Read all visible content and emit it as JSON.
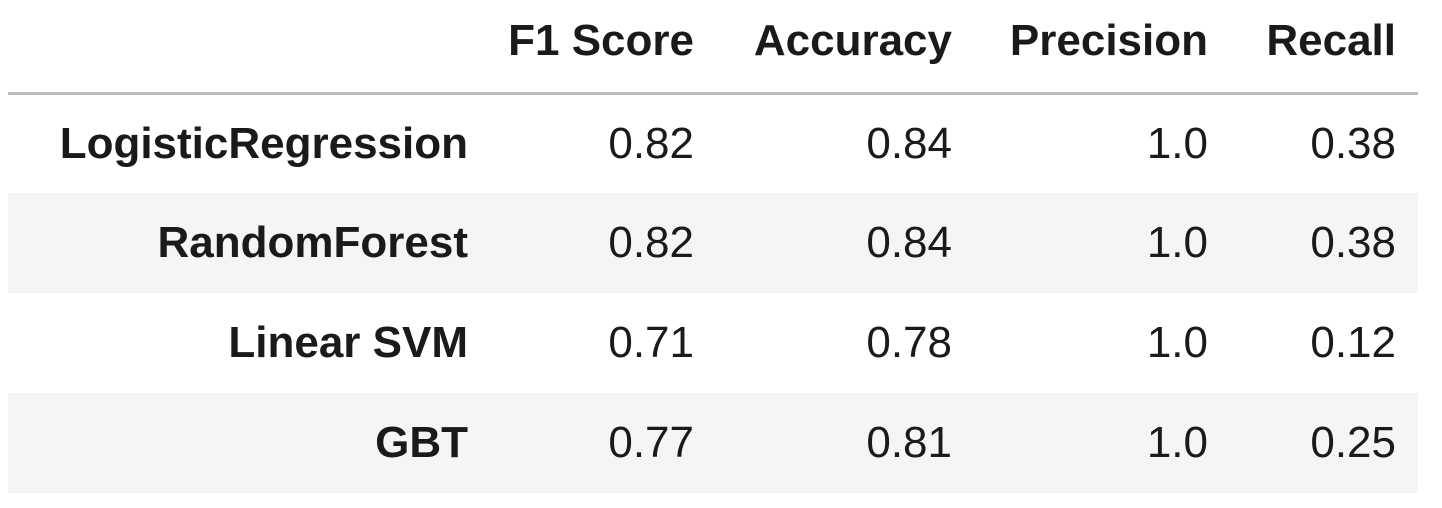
{
  "table": {
    "columns": [
      "",
      "F1 Score",
      "Accuracy",
      "Precision",
      "Recall"
    ],
    "rows": [
      {
        "label": "LogisticRegression",
        "values": [
          "0.82",
          "0.84",
          "1.0",
          "0.38"
        ]
      },
      {
        "label": "RandomForest",
        "values": [
          "0.82",
          "0.84",
          "1.0",
          "0.38"
        ]
      },
      {
        "label": "Linear SVM",
        "values": [
          "0.71",
          "0.78",
          "1.0",
          "0.12"
        ]
      },
      {
        "label": "GBT",
        "values": [
          "0.77",
          "0.81",
          "1.0",
          "0.25"
        ]
      }
    ]
  },
  "colors": {
    "stripe": "#f5f5f5",
    "header_rule": "#bdbdbd",
    "text": "#1a1a1a"
  }
}
